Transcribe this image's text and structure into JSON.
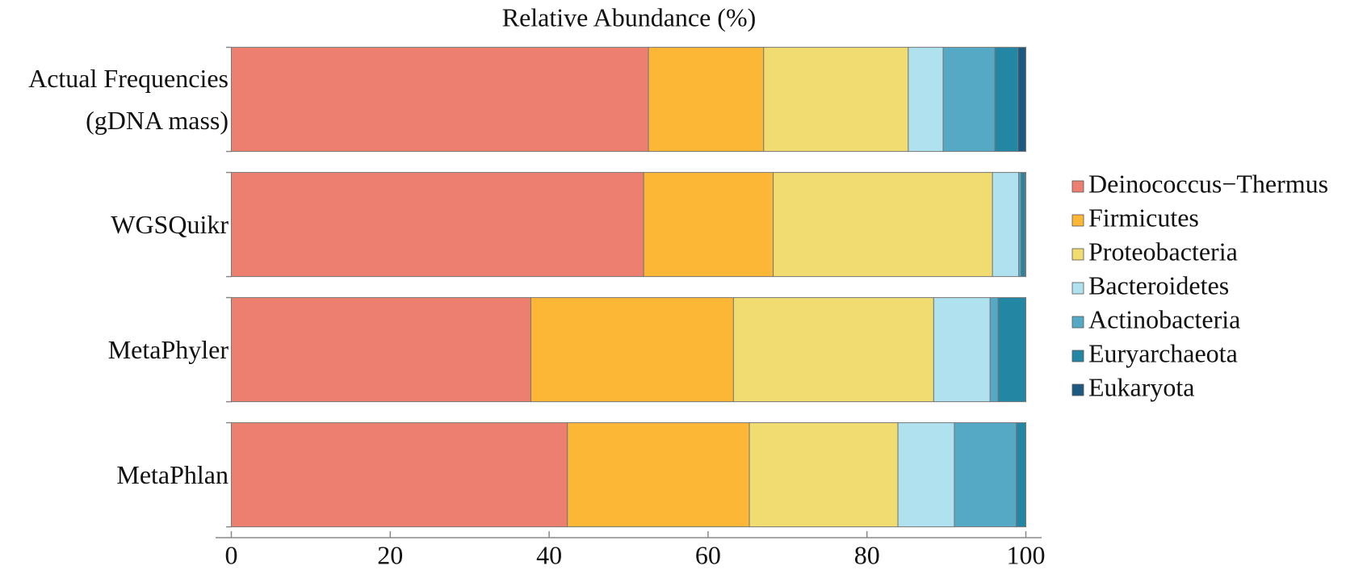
{
  "chart_data": {
    "type": "stacked-barh",
    "title": "Relative Abundance (%)",
    "categories": [
      "Actual Frequencies (gDNA mass)",
      "WGSQuikr",
      "MetaPhyler",
      "MetaPhlan"
    ],
    "series": [
      {
        "name": "Deinococcus−Thermus",
        "color": "#ec7f6f",
        "values": [
          52.5,
          51.9,
          37.7,
          42.3
        ]
      },
      {
        "name": "Firmicutes",
        "color": "#fdb737",
        "values": [
          14.5,
          16.3,
          25.5,
          22.9
        ]
      },
      {
        "name": "Proteobacteria",
        "color": "#f1dc72",
        "values": [
          18.2,
          27.6,
          25.2,
          18.7
        ]
      },
      {
        "name": "Bacteroidetes",
        "color": "#b0e1ef",
        "values": [
          4.4,
          3.3,
          7.1,
          7.1
        ]
      },
      {
        "name": "Actinobacteria",
        "color": "#55a9c4",
        "values": [
          6.5,
          0.3,
          1.0,
          7.8
        ]
      },
      {
        "name": "Euryarchaeota",
        "color": "#2386a3",
        "values": [
          2.9,
          0.5,
          3.5,
          1.2
        ]
      },
      {
        "name": "Eukaryota",
        "color": "#1d5a82",
        "values": [
          1.0,
          0.1,
          0,
          0
        ]
      }
    ],
    "xlim": [
      0,
      100
    ],
    "xticks": [
      0,
      20,
      40,
      60,
      80,
      100
    ],
    "legend": "right"
  }
}
